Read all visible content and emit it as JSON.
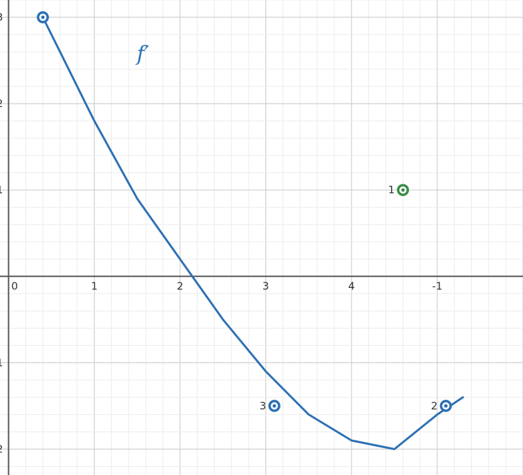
{
  "chart_data": {
    "type": "line",
    "title": "",
    "xlabel": "",
    "ylabel": "",
    "xlim": [
      -0.1,
      6.0
    ],
    "ylim": [
      -2.3,
      3.2
    ],
    "grid": true,
    "x_tick_labels": [
      "0",
      "1",
      "2",
      "3",
      "4",
      "-1"
    ],
    "y_tick_labels": [
      "3",
      "2",
      "1",
      "-1",
      "-2"
    ],
    "function_label": "f′",
    "series": [
      {
        "name": "f′",
        "color": "#2d70b3",
        "x": [
          0.4,
          0.6,
          1.0,
          1.5,
          2.0,
          2.5,
          3.0,
          3.5,
          4.0,
          4.5,
          5.0,
          5.3
        ],
        "y": [
          3.0,
          2.6,
          1.8,
          0.9,
          0.2,
          -0.5,
          -1.1,
          -1.6,
          -1.9,
          -2.0,
          -1.6,
          -1.4
        ]
      }
    ],
    "labeled_points": [
      {
        "label": "",
        "x": 0.4,
        "y": 3.0,
        "color": "#2d70b3"
      },
      {
        "label": "1",
        "x": 4.6,
        "y": 1.0,
        "color": "#388c46"
      },
      {
        "label": "3",
        "x": 3.1,
        "y": -1.5,
        "color": "#2d70b3"
      },
      {
        "label": "2",
        "x": 5.1,
        "y": -1.5,
        "color": "#2d70b3"
      }
    ]
  }
}
